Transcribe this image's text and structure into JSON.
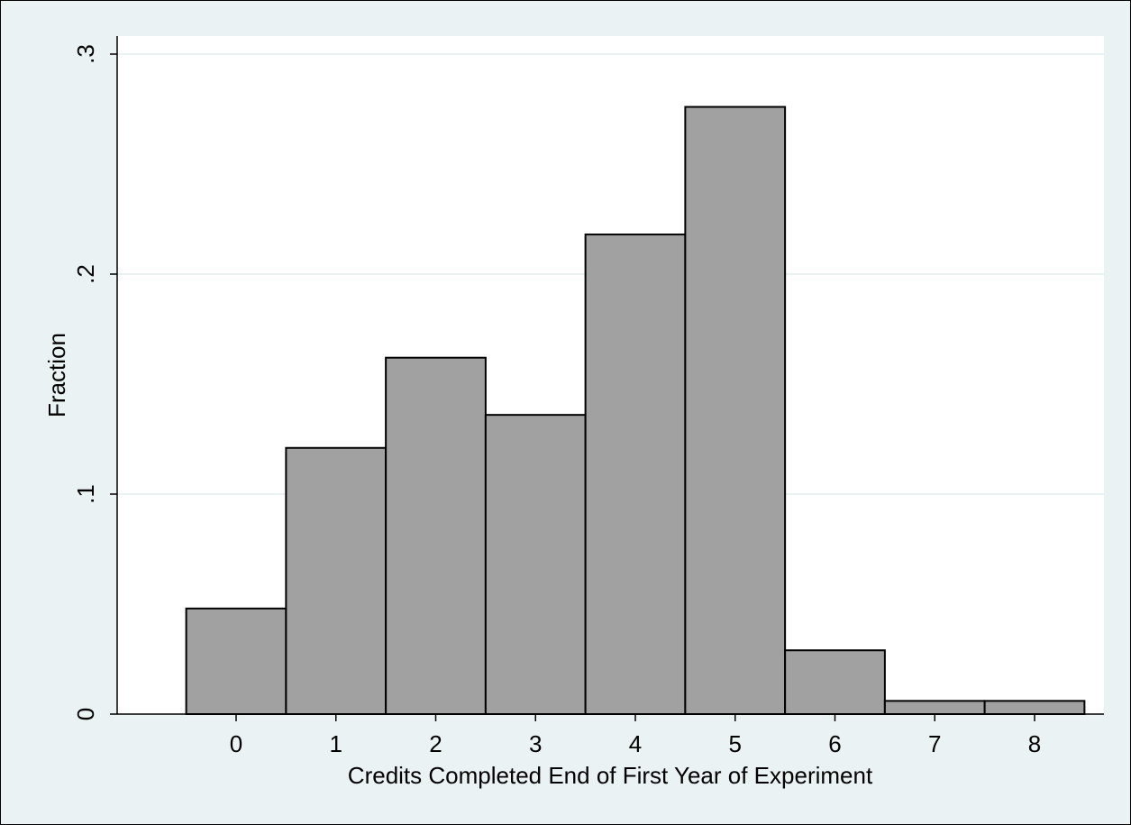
{
  "chart_data": {
    "type": "bar",
    "categories": [
      "0",
      "1",
      "2",
      "3",
      "4",
      "5",
      "6",
      "7",
      "8"
    ],
    "x": [
      0,
      1,
      2,
      3,
      4,
      5,
      6,
      7,
      8
    ],
    "values": [
      0.048,
      0.121,
      0.162,
      0.136,
      0.218,
      0.276,
      0.029,
      0.006,
      0.006
    ],
    "title": "",
    "xlabel": "Credits Completed End of First Year of Experiment",
    "ylabel": "Fraction",
    "xlim": [
      -1,
      8.5
    ],
    "ylim": [
      0,
      0.3
    ],
    "yticks": [
      {
        "value": 0,
        "label": "0"
      },
      {
        "value": 0.1,
        "label": ".1"
      },
      {
        "value": 0.2,
        "label": ".2"
      },
      {
        "value": 0.3,
        "label": ".3"
      }
    ],
    "xticks": [
      {
        "value": 0,
        "label": "0"
      },
      {
        "value": 1,
        "label": "1"
      },
      {
        "value": 2,
        "label": "2"
      },
      {
        "value": 3,
        "label": "3"
      },
      {
        "value": 4,
        "label": "4"
      },
      {
        "value": 5,
        "label": "5"
      },
      {
        "value": 6,
        "label": "6"
      },
      {
        "value": 7,
        "label": "7"
      },
      {
        "value": 8,
        "label": "8"
      }
    ],
    "grid": true,
    "legend": "none",
    "colors": {
      "outer_background": "#eaf2f3",
      "plot_background": "#ffffff",
      "bar_fill": "#a1a1a1",
      "bar_edge": "#000000",
      "gridline": "#eaf2f3",
      "axis": "#000000"
    }
  }
}
